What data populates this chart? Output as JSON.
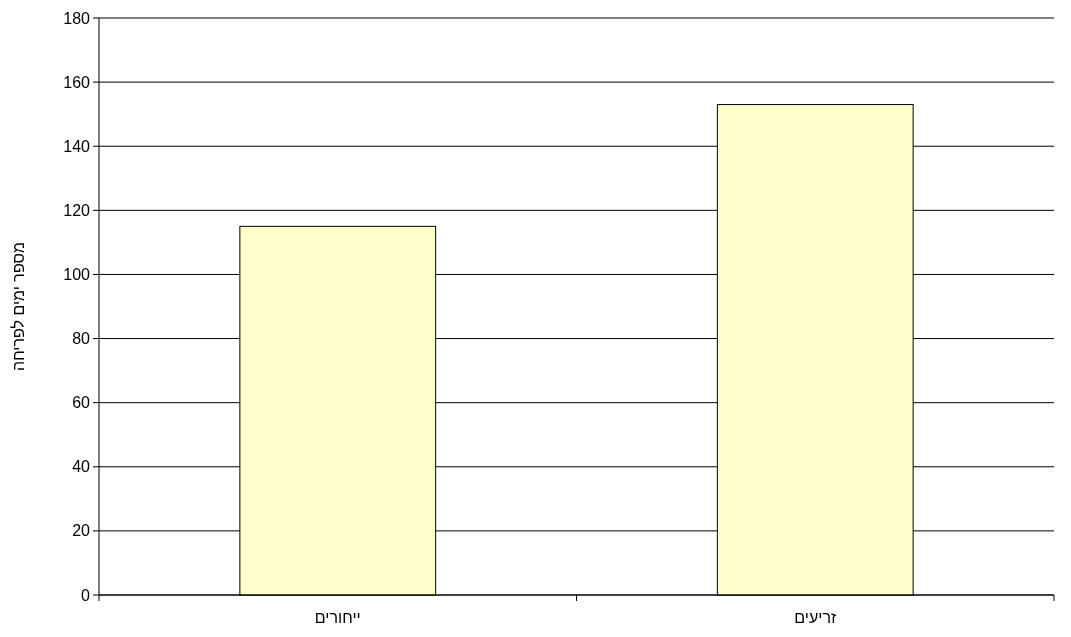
{
  "chart_data": {
    "type": "bar",
    "ylabel": "מספר ימים לפריחה",
    "categories": [
      "ייחורים",
      "זריעים"
    ],
    "values": [
      115,
      153
    ],
    "color": "#ffffcc",
    "ylim": [
      0,
      180
    ],
    "yticks": [
      0,
      20,
      40,
      60,
      80,
      100,
      120,
      140,
      160,
      180
    ],
    "grid": "y"
  }
}
